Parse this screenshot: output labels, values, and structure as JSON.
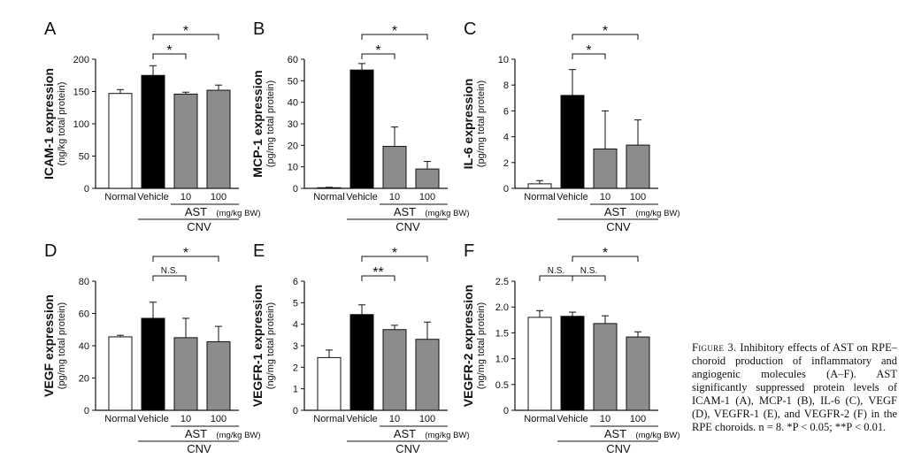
{
  "chart_data": [
    {
      "panel": "A",
      "type": "bar",
      "ylabel": "ICAM-1 expression",
      "yunit": "(ng/kg total protein)",
      "ylim": [
        0,
        200
      ],
      "yticks": [
        0,
        50,
        100,
        150,
        200
      ],
      "categories": [
        "Normal",
        "Vehicle",
        "10",
        "100"
      ],
      "values": [
        147,
        175,
        146,
        152
      ],
      "errors": [
        6,
        15,
        3,
        8
      ],
      "colors": [
        "#ffffff",
        "#000000",
        "#8c8c8c",
        "#8c8c8c"
      ],
      "group_label": "AST",
      "group_unit": "(mg/kg BW)",
      "cnv_label": "CNV",
      "sig": [
        {
          "from": 1,
          "to": 2,
          "label": "*",
          "level": 1
        },
        {
          "from": 1,
          "to": 3,
          "label": "*",
          "level": 2
        }
      ]
    },
    {
      "panel": "B",
      "type": "bar",
      "ylabel": "MCP-1 expression",
      "yunit": "(pg/mg total protein)",
      "ylim": [
        0,
        60
      ],
      "yticks": [
        0,
        10,
        20,
        30,
        40,
        50,
        60
      ],
      "categories": [
        "Normal",
        "Vehicle",
        "10",
        "100"
      ],
      "values": [
        0.3,
        55,
        19.5,
        9
      ],
      "errors": [
        0.2,
        3,
        9,
        3.5
      ],
      "colors": [
        "#ffffff",
        "#000000",
        "#8c8c8c",
        "#8c8c8c"
      ],
      "group_label": "AST",
      "group_unit": "(mg/kg BW)",
      "cnv_label": "CNV",
      "sig": [
        {
          "from": 1,
          "to": 2,
          "label": "*",
          "level": 1
        },
        {
          "from": 1,
          "to": 3,
          "label": "*",
          "level": 2
        }
      ]
    },
    {
      "panel": "C",
      "type": "bar",
      "ylabel": "IL-6 expression",
      "yunit": "(pg/mg total protein)",
      "ylim": [
        0,
        10
      ],
      "yticks": [
        0,
        2,
        4,
        6,
        8,
        10
      ],
      "categories": [
        "Normal",
        "Vehicle",
        "10",
        "100"
      ],
      "values": [
        0.35,
        7.2,
        3.05,
        3.35
      ],
      "errors": [
        0.25,
        2.0,
        2.95,
        1.95
      ],
      "colors": [
        "#ffffff",
        "#000000",
        "#8c8c8c",
        "#8c8c8c"
      ],
      "group_label": "AST",
      "group_unit": "(mg/kg BW)",
      "cnv_label": "CNV",
      "sig": [
        {
          "from": 1,
          "to": 2,
          "label": "*",
          "level": 1
        },
        {
          "from": 1,
          "to": 3,
          "label": "*",
          "level": 2
        }
      ]
    },
    {
      "panel": "D",
      "type": "bar",
      "ylabel": "VEGF expression",
      "yunit": "(pg/mg total protein)",
      "ylim": [
        0,
        80
      ],
      "yticks": [
        0,
        20,
        40,
        60,
        80
      ],
      "categories": [
        "Normal",
        "Vehicle",
        "10",
        "100"
      ],
      "values": [
        45.5,
        57,
        45,
        42.5
      ],
      "errors": [
        1,
        10,
        12,
        9.5
      ],
      "colors": [
        "#ffffff",
        "#000000",
        "#8c8c8c",
        "#8c8c8c"
      ],
      "group_label": "AST",
      "group_unit": "(mg/kg BW)",
      "cnv_label": "CNV",
      "sig": [
        {
          "from": 1,
          "to": 2,
          "label": "N.S.",
          "level": 1
        },
        {
          "from": 1,
          "to": 3,
          "label": "*",
          "level": 2
        }
      ]
    },
    {
      "panel": "E",
      "type": "bar",
      "ylabel": "VEGFR-1 expression",
      "yunit": "(ng/mg total protein)",
      "ylim": [
        0,
        6
      ],
      "yticks": [
        0,
        1,
        2,
        3,
        4,
        5,
        6
      ],
      "categories": [
        "Normal",
        "Vehicle",
        "10",
        "100"
      ],
      "values": [
        2.45,
        4.45,
        3.75,
        3.3
      ],
      "errors": [
        0.35,
        0.45,
        0.2,
        0.8
      ],
      "colors": [
        "#ffffff",
        "#000000",
        "#8c8c8c",
        "#8c8c8c"
      ],
      "group_label": "AST",
      "group_unit": "(mg/kg BW)",
      "cnv_label": "CNV",
      "sig": [
        {
          "from": 1,
          "to": 2,
          "label": "**",
          "level": 1
        },
        {
          "from": 1,
          "to": 3,
          "label": "*",
          "level": 2
        }
      ]
    },
    {
      "panel": "F",
      "type": "bar",
      "ylabel": "VEGFR-2 expression",
      "yunit": "(ng/mg total protein)",
      "ylim": [
        0,
        2.5
      ],
      "yticks": [
        "0",
        "0.5",
        "1.0",
        "1.5",
        "2.0",
        "2.5"
      ],
      "categories": [
        "Normal",
        "Vehicle",
        "10",
        "100"
      ],
      "values": [
        1.8,
        1.82,
        1.68,
        1.42
      ],
      "errors": [
        0.13,
        0.08,
        0.15,
        0.1
      ],
      "colors": [
        "#ffffff",
        "#000000",
        "#8c8c8c",
        "#8c8c8c"
      ],
      "group_label": "AST",
      "group_unit": "(mg/kg BW)",
      "cnv_label": "CNV",
      "sig": [
        {
          "from": 0,
          "to": 1,
          "label": "N.S.",
          "level": 1
        },
        {
          "from": 1,
          "to": 2,
          "label": "N.S.",
          "level": 1
        },
        {
          "from": 1,
          "to": 3,
          "label": "*",
          "level": 2
        }
      ]
    }
  ],
  "caption": {
    "label": "Figure 3.",
    "text": "Inhibitory effects of AST on RPE–choroid production of inflammatory and angiogenic molecules (A–F). AST significantly suppressed protein levels of ICAM-1 (A), MCP-1 (B), IL-6 (C), VEGF (D), VEGFR-1 (E), and VEGFR-2 (F) in the RPE choroids. n = 8. *P < 0.05; **P < 0.01."
  }
}
